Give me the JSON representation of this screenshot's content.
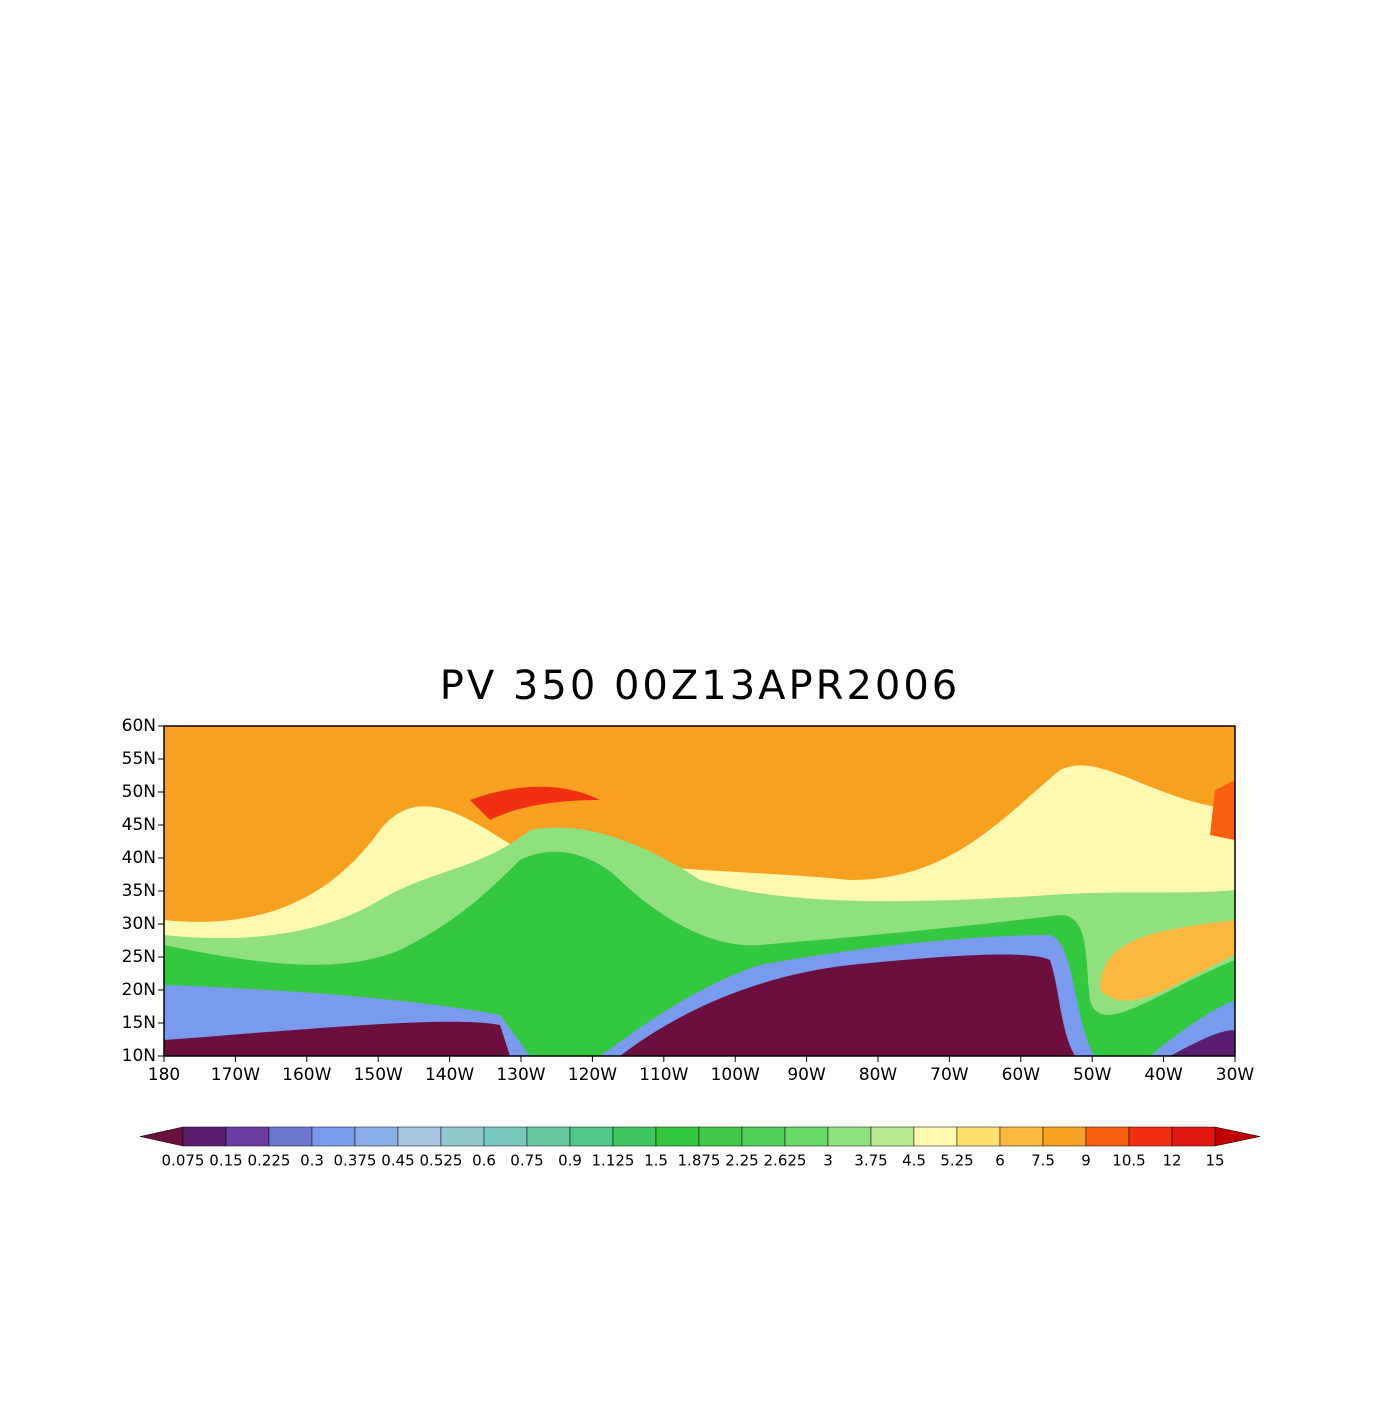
{
  "title": "PV 350 00Z13APR2006",
  "map": {
    "lat_labels": [
      "60N",
      "55N",
      "50N",
      "45N",
      "40N",
      "35N",
      "30N",
      "25N",
      "20N",
      "15N",
      "10N"
    ],
    "lon_labels": [
      "180",
      "170W",
      "160W",
      "150W",
      "140W",
      "130W",
      "120W",
      "110W",
      "100W",
      "90W",
      "80W",
      "70W",
      "60W",
      "50W",
      "40W",
      "30W"
    ]
  },
  "colorbar": {
    "levels": [
      0.075,
      0.15,
      0.225,
      0.3,
      0.375,
      0.45,
      0.525,
      0.6,
      0.75,
      0.9,
      1.125,
      1.5,
      1.875,
      2.25,
      2.625,
      3,
      3.75,
      4.5,
      5.25,
      6,
      7.5,
      9,
      10.5,
      12,
      15
    ],
    "colors": [
      "#6b0f3f",
      "#5a1e6e",
      "#6a3ea0",
      "#6a78d0",
      "#7a9af0",
      "#8aaee8",
      "#a8c4e0",
      "#90c8d0",
      "#78c8c0",
      "#68c8a0",
      "#50c888",
      "#40c860",
      "#34c840",
      "#40c848",
      "#50d058",
      "#68d868",
      "#90e080",
      "#b8e890",
      "#fff8b0",
      "#ffe070",
      "#fbb840",
      "#f8a020",
      "#f86010",
      "#f03010",
      "#e01810",
      "#c00000"
    ]
  }
}
